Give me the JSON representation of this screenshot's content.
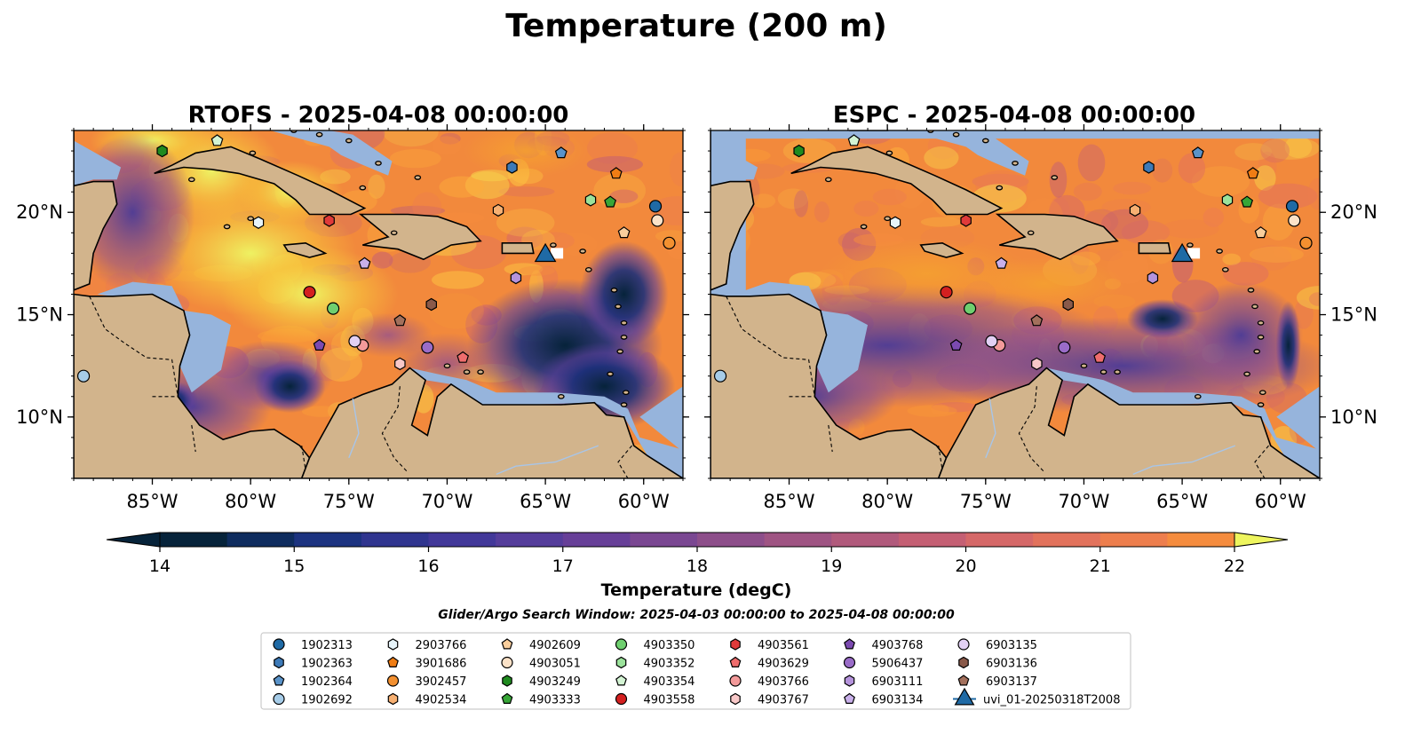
{
  "figure": {
    "suptitle": "Temperature (200 m)",
    "search_window": "Glider/Argo Search Window: 2025-04-03 00:00:00 to 2025-04-08 00:00:00"
  },
  "chart_data": [
    {
      "type": "heatmap",
      "title": "RTOFS - 2025-04-08 00:00:00",
      "model": "RTOFS",
      "xlim": [
        -89,
        -58
      ],
      "ylim": [
        7,
        24
      ],
      "x_ticks": [
        -85,
        -80,
        -75,
        -70,
        -65,
        -60
      ],
      "x_tick_labels": [
        "85°W",
        "80°W",
        "75°W",
        "70°W",
        "65°W",
        "60°W"
      ],
      "y_ticks": [
        10,
        15,
        20
      ],
      "y_tick_labels": [
        "10°N",
        "15°N",
        "20°N"
      ],
      "y_tick_side": "left",
      "grid": false,
      "field_note_cold": "cold core (≈14–15 degC) in eastern Caribbean between 67°W and 60°W, 11°N–16°N",
      "field_note_warm": "warm (≈21–22 degC) Cayman / Yucatan region"
    },
    {
      "type": "heatmap",
      "title": "ESPC - 2025-04-08 00:00:00",
      "model": "ESPC",
      "xlim": [
        -89,
        -58
      ],
      "ylim": [
        7,
        24
      ],
      "x_ticks": [
        -85,
        -80,
        -75,
        -70,
        -65,
        -60
      ],
      "x_tick_labels": [
        "85°W",
        "80°W",
        "75°W",
        "70°W",
        "65°W",
        "60°W"
      ],
      "y_ticks": [
        10,
        15,
        20
      ],
      "y_tick_labels": [
        "10°N",
        "15°N",
        "20°N"
      ],
      "y_tick_side": "right",
      "grid": false
    }
  ],
  "colorbar": {
    "label": "Temperature (degC)",
    "vmin": 14,
    "vmax": 22,
    "step": 0.5,
    "ticks": [
      14,
      15,
      16,
      17,
      18,
      19,
      20,
      21,
      22
    ],
    "extend": "both",
    "colormap": "thermal"
  },
  "colors": {
    "land": "#d2b48c",
    "shelf": "#96b4dc",
    "outside": "#06233a",
    "coast": "#000000"
  },
  "legend": {
    "placement": "bottom-center",
    "columns": 7,
    "entries": [
      {
        "label": "1902313",
        "marker": "circle",
        "color": "#1f6aa5",
        "lon": -59.4,
        "lat": 20.3
      },
      {
        "label": "1902363",
        "marker": "hexagon",
        "color": "#3d7ab8",
        "lon": -66.7,
        "lat": 22.2
      },
      {
        "label": "1902364",
        "marker": "pentagon",
        "color": "#5a93c9",
        "lon": -64.2,
        "lat": 22.9
      },
      {
        "label": "1902692",
        "marker": "circle",
        "color": "#a6cce8",
        "lon": -88.5,
        "lat": 12.0
      },
      {
        "label": "2903766",
        "marker": "hexagon",
        "color": "#e7f4fa",
        "lon": -79.6,
        "lat": 19.5
      },
      {
        "label": "3901686",
        "marker": "pentagon",
        "color": "#f07d14",
        "lon": -61.4,
        "lat": 21.9
      },
      {
        "label": "3902457",
        "marker": "circle",
        "color": "#f39030",
        "lon": -58.7,
        "lat": 18.5
      },
      {
        "label": "4902534",
        "marker": "hexagon",
        "color": "#f7b072",
        "lon": -67.4,
        "lat": 20.1
      },
      {
        "label": "4902609",
        "marker": "pentagon",
        "color": "#f9ce9c",
        "lon": -61.0,
        "lat": 19.0
      },
      {
        "label": "4903051",
        "marker": "circle",
        "color": "#fbe2c8",
        "lon": -59.3,
        "lat": 19.6
      },
      {
        "label": "4903249",
        "marker": "hexagon",
        "color": "#1f8a1f",
        "lon": -84.5,
        "lat": 23.0
      },
      {
        "label": "4903333",
        "marker": "pentagon",
        "color": "#37a637",
        "lon": -61.7,
        "lat": 20.5
      },
      {
        "label": "4903350",
        "marker": "circle",
        "color": "#6fcf6f",
        "lon": -75.8,
        "lat": 15.3
      },
      {
        "label": "4903352",
        "marker": "hexagon",
        "color": "#9be29b",
        "lon": -62.7,
        "lat": 20.6
      },
      {
        "label": "4903354",
        "marker": "pentagon",
        "color": "#d4f4d4",
        "lon": -81.7,
        "lat": 23.5
      },
      {
        "label": "4903558",
        "marker": "circle",
        "color": "#d42020",
        "lon": -77.0,
        "lat": 16.1
      },
      {
        "label": "4903561",
        "marker": "hexagon",
        "color": "#e03a3a",
        "lon": -76.0,
        "lat": 19.6
      },
      {
        "label": "4903629",
        "marker": "pentagon",
        "color": "#ef6d6d",
        "lon": -69.2,
        "lat": 12.9
      },
      {
        "label": "4903766",
        "marker": "circle",
        "color": "#f39a9a",
        "lon": -74.3,
        "lat": 13.5
      },
      {
        "label": "4903767",
        "marker": "hexagon",
        "color": "#f8c8c8",
        "lon": -72.4,
        "lat": 12.6
      },
      {
        "label": "4903768",
        "marker": "pentagon",
        "color": "#7b4ab0",
        "lon": -76.5,
        "lat": 13.5
      },
      {
        "label": "5906437",
        "marker": "circle",
        "color": "#9a6cc8",
        "lon": -71.0,
        "lat": 13.4
      },
      {
        "label": "6903111",
        "marker": "hexagon",
        "color": "#b593dc",
        "lon": -66.5,
        "lat": 16.8
      },
      {
        "label": "6903134",
        "marker": "pentagon",
        "color": "#c9b0ea",
        "lon": -74.2,
        "lat": 17.5
      },
      {
        "label": "6903135",
        "marker": "circle",
        "color": "#e2d0f4",
        "lon": -74.7,
        "lat": 13.7
      },
      {
        "label": "6903136",
        "marker": "hexagon",
        "color": "#8a5a4a",
        "lon": -70.8,
        "lat": 15.5
      },
      {
        "label": "6903137",
        "marker": "pentagon",
        "color": "#a3705c",
        "lon": -72.4,
        "lat": 14.7
      },
      {
        "label": "uvi_01-20250318T2008",
        "marker": "triangle",
        "color": "#1f6aa5",
        "lon": -65.0,
        "lat": 18.0,
        "line": true
      }
    ]
  }
}
